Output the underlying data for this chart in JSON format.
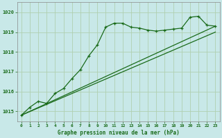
{
  "title": "Graphe pression niveau de la mer (hPa)",
  "background_color": "#c8e8e8",
  "grid_color": "#b0d0b0",
  "line_color": "#1a6b1a",
  "xlim": [
    -0.5,
    23.5
  ],
  "ylim": [
    1014.5,
    1020.5
  ],
  "yticks": [
    1015,
    1016,
    1017,
    1018,
    1019,
    1020
  ],
  "xticks": [
    0,
    1,
    2,
    3,
    4,
    5,
    6,
    7,
    8,
    9,
    10,
    11,
    12,
    13,
    14,
    15,
    16,
    17,
    18,
    19,
    20,
    21,
    22,
    23
  ],
  "series1_x": [
    0,
    1,
    2,
    3,
    4,
    5,
    6,
    7,
    8,
    9,
    10,
    11,
    12,
    13,
    14,
    15,
    16,
    17,
    18,
    19,
    20,
    21,
    22,
    23
  ],
  "series1_y": [
    1014.8,
    1015.2,
    1015.5,
    1015.4,
    1015.9,
    1016.15,
    1016.65,
    1017.1,
    1017.8,
    1018.35,
    1019.25,
    1019.45,
    1019.45,
    1019.25,
    1019.2,
    1019.1,
    1019.05,
    1019.1,
    1019.15,
    1019.2,
    1019.75,
    1019.8,
    1019.35,
    1019.3
  ],
  "trend1_x": [
    0,
    23
  ],
  "trend1_y": [
    1014.8,
    1019.3
  ],
  "trend2_x": [
    0,
    23
  ],
  "trend2_y": [
    1014.8,
    1019.0
  ],
  "figsize": [
    3.2,
    2.0
  ],
  "dpi": 100
}
